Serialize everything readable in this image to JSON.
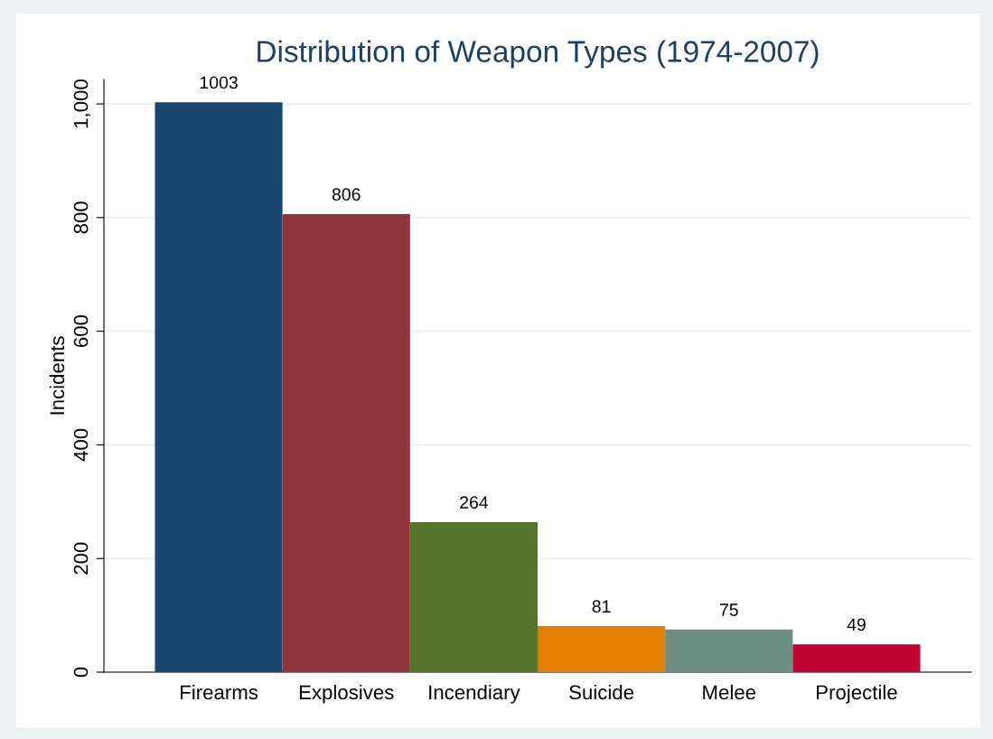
{
  "chart_data": {
    "type": "bar",
    "title": "Distribution of Weapon Types (1974-2007)",
    "ylabel": "Incidents",
    "categories": [
      "Firearms",
      "Explosives",
      "Incendiary",
      "Suicide",
      "Melee",
      "Projectile"
    ],
    "values": [
      1003,
      806,
      264,
      81,
      75,
      49
    ],
    "colors": [
      "#1a476f",
      "#90353b",
      "#55752f",
      "#e37e00",
      "#6e8e84",
      "#c10534"
    ],
    "ylim": [
      0,
      1043
    ],
    "yticks": [
      0,
      200,
      400,
      600,
      800,
      {
        "value": 1000,
        "label": "1,000"
      }
    ],
    "grid": "y",
    "data_labels": true,
    "legend": false
  }
}
